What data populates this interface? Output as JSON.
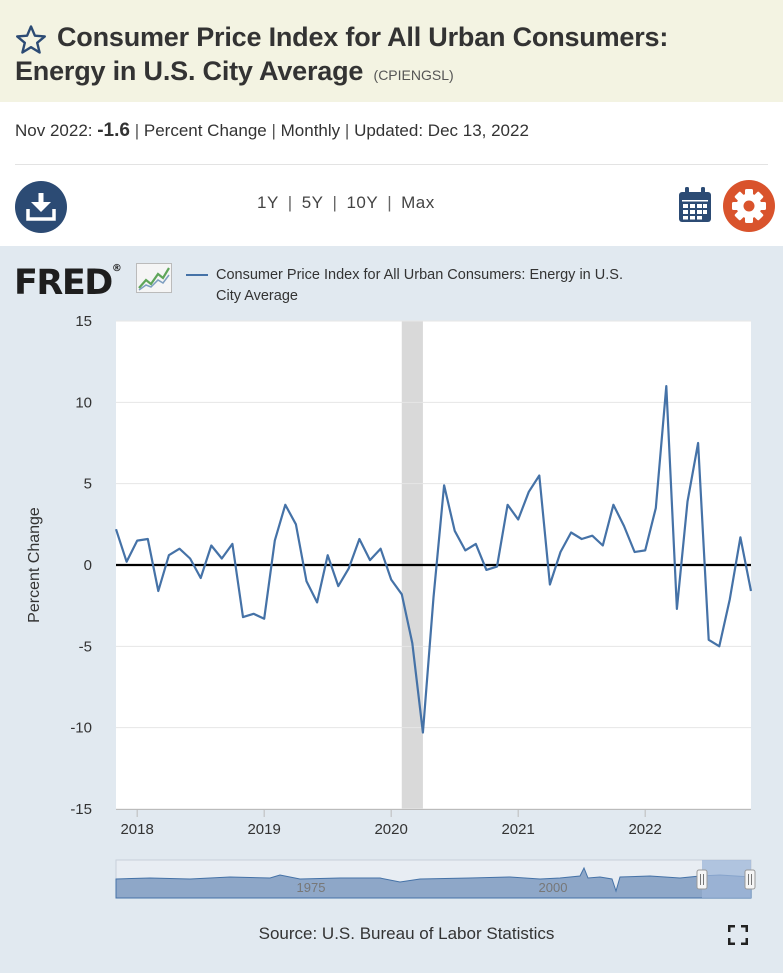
{
  "header": {
    "title_line1": "Consumer Price Index for All Urban Consumers:",
    "title_line2": "Energy in U.S. City Average",
    "series_id": "(CPIENGSL)"
  },
  "meta": {
    "date": "Nov 2022:",
    "value": "-1.6",
    "units": "Percent Change",
    "frequency": "Monthly",
    "updated_label": "Updated:",
    "updated_date": "Dec 13, 2022",
    "separator": "|"
  },
  "ranges": [
    "1Y",
    "5Y",
    "10Y",
    "Max"
  ],
  "icons": {
    "favorite": "star-icon",
    "download": "download-icon",
    "calendar": "calendar-icon",
    "settings": "gear-icon",
    "fullscreen": "fullscreen-icon"
  },
  "logo": {
    "text": "FRED",
    "mark": "®"
  },
  "legend": {
    "label": "Consumer Price Index for All Urban Consumers: Energy in U.S. City Average"
  },
  "source": "Source: U.S. Bureau of Labor Statistics",
  "colors": {
    "title_bg": "#f3f3e2",
    "panel_bg": "#e1e9f0",
    "line": "#4572a7",
    "download_button": "#2c4b74",
    "settings_button": "#d9532c",
    "recession": "#d9d9d9"
  },
  "chart_data": {
    "type": "line",
    "title": "Consumer Price Index for All Urban Consumers: Energy in U.S. City Average",
    "xlabel": "",
    "ylabel": "Percent Change",
    "ylim": [
      -15,
      15
    ],
    "yticks": [
      15,
      10,
      5,
      0,
      -5,
      -10,
      -15
    ],
    "ytick_labels": [
      "15",
      "10",
      "5",
      "0",
      "-5",
      "-10",
      "-15"
    ],
    "xtick_labels": [
      "2018",
      "2019",
      "2020",
      "2021",
      "2022"
    ],
    "xtick_years": [
      2018,
      2019,
      2020,
      2021,
      2022
    ],
    "x_start": "2017-11",
    "x_end": "2022-11",
    "recession_shading": {
      "start": "2020-02",
      "end": "2020-04"
    },
    "navigator_labels": [
      "1975",
      "2000"
    ],
    "series": [
      {
        "name": "CPIENGSL",
        "x": [
          "2017-11",
          "2017-12",
          "2018-01",
          "2018-02",
          "2018-03",
          "2018-04",
          "2018-05",
          "2018-06",
          "2018-07",
          "2018-08",
          "2018-09",
          "2018-10",
          "2018-11",
          "2018-12",
          "2019-01",
          "2019-02",
          "2019-03",
          "2019-04",
          "2019-05",
          "2019-06",
          "2019-07",
          "2019-08",
          "2019-09",
          "2019-10",
          "2019-11",
          "2019-12",
          "2020-01",
          "2020-02",
          "2020-03",
          "2020-04",
          "2020-05",
          "2020-06",
          "2020-07",
          "2020-08",
          "2020-09",
          "2020-10",
          "2020-11",
          "2020-12",
          "2021-01",
          "2021-02",
          "2021-03",
          "2021-04",
          "2021-05",
          "2021-06",
          "2021-07",
          "2021-08",
          "2021-09",
          "2021-10",
          "2021-11",
          "2021-12",
          "2022-01",
          "2022-02",
          "2022-03",
          "2022-04",
          "2022-05",
          "2022-06",
          "2022-07",
          "2022-08",
          "2022-09",
          "2022-10",
          "2022-11"
        ],
        "values": [
          2.2,
          0.2,
          1.5,
          1.6,
          -1.6,
          0.6,
          1.0,
          0.4,
          -0.8,
          1.2,
          0.4,
          1.3,
          -3.2,
          -3.0,
          -3.3,
          1.5,
          3.7,
          2.5,
          -1.0,
          -2.3,
          0.6,
          -1.3,
          -0.2,
          1.6,
          0.3,
          1.0,
          -0.9,
          -1.8,
          -4.8,
          -10.3,
          -2.0,
          4.9,
          2.1,
          0.9,
          1.3,
          -0.3,
          -0.1,
          3.7,
          2.8,
          4.5,
          5.5,
          -1.2,
          0.8,
          2.0,
          1.6,
          1.8,
          1.2,
          3.7,
          2.4,
          0.8,
          0.9,
          3.5,
          11.0,
          -2.7,
          3.9,
          7.5,
          -4.6,
          -5.0,
          -2.1,
          1.7,
          -1.6
        ]
      }
    ]
  }
}
